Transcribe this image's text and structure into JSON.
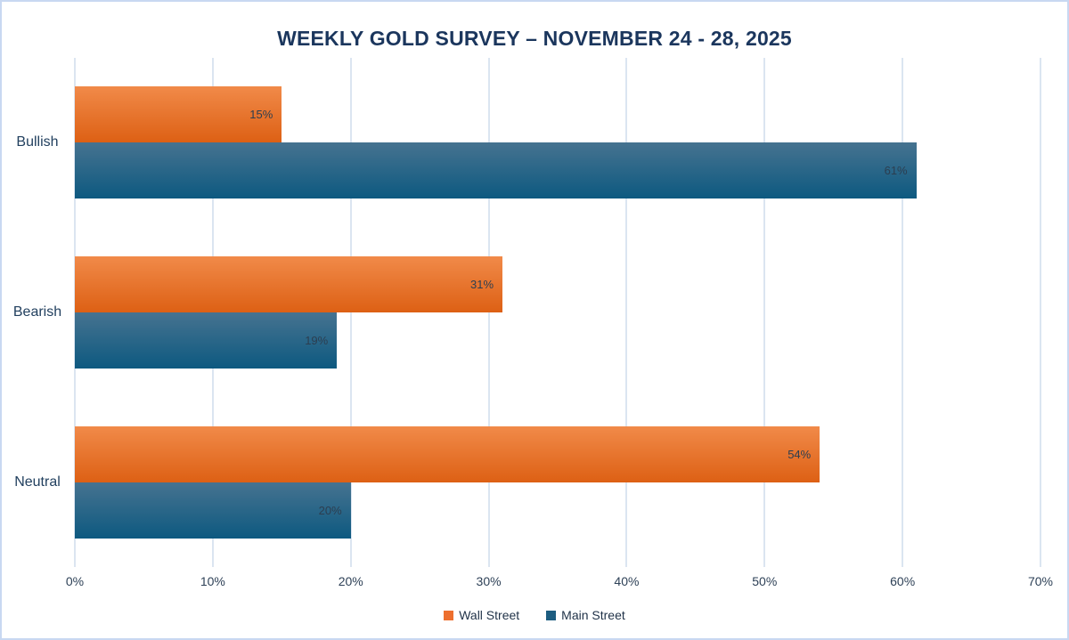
{
  "chart_data": {
    "type": "bar",
    "orientation": "horizontal",
    "title": "WEEKLY GOLD SURVEY – NOVEMBER 24 - 28, 2025",
    "categories": [
      "Bullish",
      "Bearish",
      "Neutral"
    ],
    "series": [
      {
        "name": "Wall Street",
        "values": [
          15,
          31,
          54
        ],
        "labels": [
          "15%",
          "31%",
          "54%"
        ],
        "color_top": "#f18a49",
        "color_bottom": "#dd6014",
        "legend_color": "#ed6f2e"
      },
      {
        "name": "Main Street",
        "values": [
          61,
          19,
          20
        ],
        "labels": [
          "61%",
          "19%",
          "20%"
        ],
        "color_top": "#467390",
        "color_bottom": "#0d5980",
        "legend_color": "#1d5d80"
      }
    ],
    "xlim": [
      0,
      70
    ],
    "xticks": [
      0,
      10,
      20,
      30,
      40,
      50,
      60,
      70
    ],
    "xtick_labels": [
      "0%",
      "10%",
      "20%",
      "30%",
      "40%",
      "50%",
      "60%",
      "70%"
    ],
    "grid": true,
    "legend_position": "bottom",
    "colors": {
      "title_text": "#1b365d",
      "category_text": "#22405f",
      "tick_text": "#2e4157",
      "data_label_text": "#2c3e50",
      "gridline": "#dbe5f1",
      "page_border": "#c8d8f1",
      "background": "#ffffff"
    }
  }
}
